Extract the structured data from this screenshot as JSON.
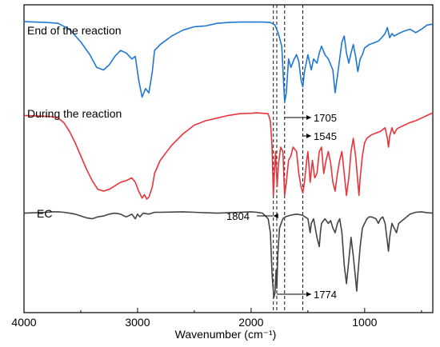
{
  "chart_data": {
    "type": "line",
    "title": "",
    "xlabel": "Wavenumber (cm⁻¹)",
    "ylabel": "",
    "xlim": [
      4000,
      400
    ],
    "x_reversed": true,
    "grid": false,
    "x_ticks": [
      4000,
      3000,
      2000,
      1000
    ],
    "x_tick_labels": [
      "4000",
      "3000",
      "2000",
      "1000"
    ],
    "series": [
      {
        "name": "End of the reaction",
        "color": "#1f77d4",
        "points": [
          [
            4000,
            0.99
          ],
          [
            3900,
            0.985
          ],
          [
            3800,
            0.98
          ],
          [
            3700,
            0.97
          ],
          [
            3600,
            0.9
          ],
          [
            3500,
            0.75
          ],
          [
            3420,
            0.6
          ],
          [
            3360,
            0.45
          ],
          [
            3300,
            0.42
          ],
          [
            3250,
            0.48
          ],
          [
            3200,
            0.58
          ],
          [
            3150,
            0.65
          ],
          [
            3100,
            0.62
          ],
          [
            3050,
            0.55
          ],
          [
            3020,
            0.58
          ],
          [
            2990,
            0.3
          ],
          [
            2960,
            0.1
          ],
          [
            2930,
            0.2
          ],
          [
            2900,
            0.15
          ],
          [
            2870,
            0.4
          ],
          [
            2850,
            0.65
          ],
          [
            2800,
            0.72
          ],
          [
            2700,
            0.82
          ],
          [
            2600,
            0.89
          ],
          [
            2500,
            0.93
          ],
          [
            2400,
            0.94
          ],
          [
            2300,
            0.97
          ],
          [
            2200,
            0.98
          ],
          [
            2100,
            0.985
          ],
          [
            2000,
            0.985
          ],
          [
            1900,
            0.985
          ],
          [
            1830,
            0.98
          ],
          [
            1790,
            0.95
          ],
          [
            1760,
            0.85
          ],
          [
            1730,
            0.7
          ],
          [
            1705,
            0.04
          ],
          [
            1690,
            0.15
          ],
          [
            1670,
            0.55
          ],
          [
            1650,
            0.45
          ],
          [
            1620,
            0.55
          ],
          [
            1600,
            0.6
          ],
          [
            1580,
            0.52
          ],
          [
            1560,
            0.3
          ],
          [
            1545,
            0.22
          ],
          [
            1530,
            0.4
          ],
          [
            1500,
            0.6
          ],
          [
            1470,
            0.42
          ],
          [
            1450,
            0.55
          ],
          [
            1420,
            0.5
          ],
          [
            1400,
            0.62
          ],
          [
            1380,
            0.7
          ],
          [
            1350,
            0.6
          ],
          [
            1320,
            0.55
          ],
          [
            1280,
            0.42
          ],
          [
            1260,
            0.15
          ],
          [
            1240,
            0.35
          ],
          [
            1200,
            0.75
          ],
          [
            1180,
            0.82
          ],
          [
            1160,
            0.62
          ],
          [
            1140,
            0.5
          ],
          [
            1120,
            0.62
          ],
          [
            1100,
            0.72
          ],
          [
            1080,
            0.58
          ],
          [
            1060,
            0.4
          ],
          [
            1040,
            0.55
          ],
          [
            1020,
            0.6
          ],
          [
            1000,
            0.68
          ],
          [
            980,
            0.7
          ],
          [
            960,
            0.72
          ],
          [
            920,
            0.74
          ],
          [
            880,
            0.76
          ],
          [
            850,
            0.8
          ],
          [
            820,
            0.85
          ],
          [
            800,
            0.92
          ],
          [
            780,
            0.8
          ],
          [
            760,
            0.85
          ],
          [
            740,
            0.82
          ],
          [
            700,
            0.85
          ],
          [
            650,
            0.88
          ],
          [
            600,
            0.9
          ],
          [
            550,
            0.86
          ],
          [
            500,
            0.9
          ],
          [
            450,
            0.95
          ],
          [
            400,
            0.96
          ]
        ]
      },
      {
        "name": "During the reaction",
        "color": "#e8343a",
        "points": [
          [
            4000,
            0.96
          ],
          [
            3900,
            0.955
          ],
          [
            3800,
            0.95
          ],
          [
            3750,
            0.945
          ],
          [
            3700,
            0.93
          ],
          [
            3650,
            0.88
          ],
          [
            3600,
            0.78
          ],
          [
            3550,
            0.65
          ],
          [
            3500,
            0.5
          ],
          [
            3450,
            0.35
          ],
          [
            3400,
            0.22
          ],
          [
            3350,
            0.12
          ],
          [
            3300,
            0.1
          ],
          [
            3250,
            0.12
          ],
          [
            3200,
            0.16
          ],
          [
            3150,
            0.2
          ],
          [
            3100,
            0.22
          ],
          [
            3050,
            0.25
          ],
          [
            3020,
            0.2
          ],
          [
            2990,
            0.1
          ],
          [
            2960,
            0.02
          ],
          [
            2940,
            0.06
          ],
          [
            2920,
            0.01
          ],
          [
            2900,
            0.03
          ],
          [
            2870,
            0.15
          ],
          [
            2850,
            0.3
          ],
          [
            2800,
            0.45
          ],
          [
            2700,
            0.62
          ],
          [
            2600,
            0.75
          ],
          [
            2500,
            0.85
          ],
          [
            2400,
            0.9
          ],
          [
            2300,
            0.93
          ],
          [
            2200,
            0.96
          ],
          [
            2100,
            0.98
          ],
          [
            2000,
            0.985
          ],
          [
            1950,
            0.99
          ],
          [
            1900,
            0.985
          ],
          [
            1850,
            0.98
          ],
          [
            1830,
            0.9
          ],
          [
            1815,
            0.6
          ],
          [
            1804,
            0.05
          ],
          [
            1795,
            0.3
          ],
          [
            1785,
            0.55
          ],
          [
            1770,
            0.15
          ],
          [
            1760,
            0.4
          ],
          [
            1740,
            0.6
          ],
          [
            1720,
            0.55
          ],
          [
            1705,
            0.05
          ],
          [
            1690,
            0.2
          ],
          [
            1670,
            0.45
          ],
          [
            1650,
            0.5
          ],
          [
            1630,
            0.6
          ],
          [
            1600,
            0.55
          ],
          [
            1580,
            0.3
          ],
          [
            1560,
            0.15
          ],
          [
            1545,
            0.08
          ],
          [
            1530,
            0.2
          ],
          [
            1510,
            0.45
          ],
          [
            1500,
            0.55
          ],
          [
            1480,
            0.2
          ],
          [
            1460,
            0.45
          ],
          [
            1440,
            0.25
          ],
          [
            1420,
            0.3
          ],
          [
            1400,
            0.55
          ],
          [
            1380,
            0.6
          ],
          [
            1360,
            0.3
          ],
          [
            1340,
            0.45
          ],
          [
            1320,
            0.55
          ],
          [
            1300,
            0.42
          ],
          [
            1280,
            0.2
          ],
          [
            1260,
            0.1
          ],
          [
            1240,
            0.3
          ],
          [
            1220,
            0.45
          ],
          [
            1200,
            0.55
          ],
          [
            1180,
            0.3
          ],
          [
            1160,
            0.05
          ],
          [
            1140,
            0.25
          ],
          [
            1120,
            0.55
          ],
          [
            1100,
            0.7
          ],
          [
            1080,
            0.5
          ],
          [
            1060,
            0.2
          ],
          [
            1050,
            0.05
          ],
          [
            1040,
            0.25
          ],
          [
            1020,
            0.5
          ],
          [
            1000,
            0.65
          ],
          [
            980,
            0.7
          ],
          [
            960,
            0.72
          ],
          [
            940,
            0.74
          ],
          [
            900,
            0.76
          ],
          [
            860,
            0.78
          ],
          [
            840,
            0.8
          ],
          [
            820,
            0.82
          ],
          [
            800,
            0.7
          ],
          [
            790,
            0.6
          ],
          [
            780,
            0.72
          ],
          [
            760,
            0.82
          ],
          [
            740,
            0.75
          ],
          [
            720,
            0.8
          ],
          [
            700,
            0.82
          ],
          [
            650,
            0.85
          ],
          [
            600,
            0.88
          ],
          [
            550,
            0.9
          ],
          [
            500,
            0.93
          ],
          [
            450,
            0.96
          ],
          [
            400,
            0.99
          ]
        ]
      },
      {
        "name": "EC",
        "color": "#444444",
        "points": [
          [
            4000,
            0.96
          ],
          [
            3900,
            0.965
          ],
          [
            3800,
            0.97
          ],
          [
            3750,
            0.975
          ],
          [
            3700,
            0.975
          ],
          [
            3650,
            0.97
          ],
          [
            3600,
            0.96
          ],
          [
            3550,
            0.95
          ],
          [
            3500,
            0.93
          ],
          [
            3450,
            0.91
          ],
          [
            3400,
            0.9
          ],
          [
            3350,
            0.92
          ],
          [
            3300,
            0.93
          ],
          [
            3250,
            0.95
          ],
          [
            3200,
            0.96
          ],
          [
            3150,
            0.95
          ],
          [
            3100,
            0.92
          ],
          [
            3050,
            0.95
          ],
          [
            3020,
            0.9
          ],
          [
            3000,
            0.95
          ],
          [
            2980,
            0.92
          ],
          [
            2950,
            0.96
          ],
          [
            2900,
            0.95
          ],
          [
            2850,
            0.97
          ],
          [
            2800,
            0.97
          ],
          [
            2600,
            0.975
          ],
          [
            2500,
            0.97
          ],
          [
            2400,
            0.965
          ],
          [
            2300,
            0.96
          ],
          [
            2200,
            0.965
          ],
          [
            2100,
            0.97
          ],
          [
            2000,
            0.975
          ],
          [
            1950,
            0.97
          ],
          [
            1900,
            0.96
          ],
          [
            1850,
            0.9
          ],
          [
            1830,
            0.75
          ],
          [
            1815,
            0.3
          ],
          [
            1800,
            0.05
          ],
          [
            1790,
            0.1
          ],
          [
            1780,
            0.35
          ],
          [
            1774,
            0.15
          ],
          [
            1765,
            0.5
          ],
          [
            1750,
            0.8
          ],
          [
            1720,
            0.9
          ],
          [
            1700,
            0.92
          ],
          [
            1650,
            0.94
          ],
          [
            1600,
            0.95
          ],
          [
            1550,
            0.94
          ],
          [
            1500,
            0.9
          ],
          [
            1480,
            0.75
          ],
          [
            1470,
            0.85
          ],
          [
            1450,
            0.9
          ],
          [
            1420,
            0.7
          ],
          [
            1400,
            0.6
          ],
          [
            1390,
            0.75
          ],
          [
            1380,
            0.85
          ],
          [
            1350,
            0.9
          ],
          [
            1320,
            0.85
          ],
          [
            1300,
            0.88
          ],
          [
            1280,
            0.8
          ],
          [
            1260,
            0.75
          ],
          [
            1240,
            0.85
          ],
          [
            1220,
            0.9
          ],
          [
            1200,
            0.75
          ],
          [
            1180,
            0.4
          ],
          [
            1160,
            0.2
          ],
          [
            1140,
            0.45
          ],
          [
            1120,
            0.7
          ],
          [
            1100,
            0.5
          ],
          [
            1080,
            0.25
          ],
          [
            1070,
            0.12
          ],
          [
            1060,
            0.3
          ],
          [
            1040,
            0.6
          ],
          [
            1020,
            0.8
          ],
          [
            1000,
            0.85
          ],
          [
            980,
            0.9
          ],
          [
            960,
            0.92
          ],
          [
            940,
            0.92
          ],
          [
            900,
            0.9
          ],
          [
            880,
            0.85
          ],
          [
            860,
            0.9
          ],
          [
            840,
            0.92
          ],
          [
            820,
            0.85
          ],
          [
            800,
            0.65
          ],
          [
            790,
            0.55
          ],
          [
            780,
            0.7
          ],
          [
            760,
            0.85
          ],
          [
            740,
            0.8
          ],
          [
            720,
            0.75
          ],
          [
            700,
            0.85
          ],
          [
            650,
            0.9
          ],
          [
            600,
            0.95
          ],
          [
            550,
            0.97
          ],
          [
            500,
            0.975
          ],
          [
            450,
            0.965
          ],
          [
            400,
            0.96
          ]
        ]
      }
    ],
    "reference_lines": [
      1804,
      1774,
      1705,
      1545
    ],
    "peak_labels": [
      "1705",
      "1545",
      "1804",
      "1774"
    ]
  }
}
